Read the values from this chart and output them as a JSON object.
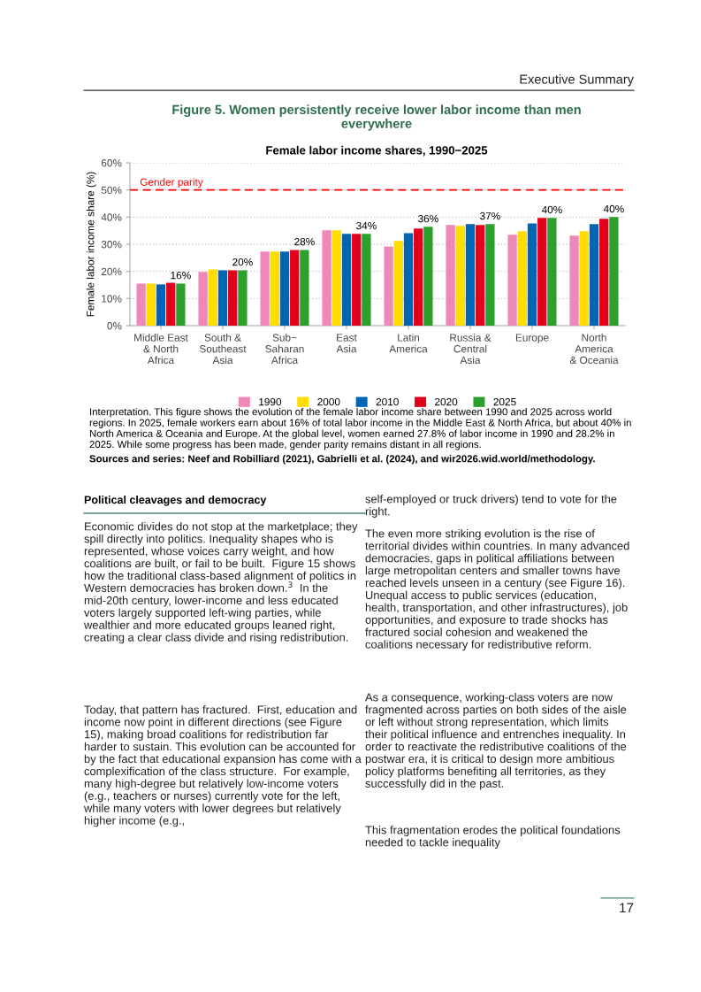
{
  "chart_data": {
    "type": "bar",
    "title": "Figure 5. Women persistently receive lower labor income than men everywhere",
    "subtitle": "Female labor income shares, 1990−2025",
    "ylabel": "Female labor income share (%)",
    "categories": [
      "Middle East\n& North\nAfrica",
      "South &\nSoutheast\nAsia",
      "Sub−\nSaharan\nAfrica",
      "East\nAsia",
      "Latin\nAmerica",
      "Russia &\nCentral\nAsia",
      "Europe",
      "North\nAmerica\n& Oceania"
    ],
    "series": [
      {
        "name": "1990",
        "color": "#ee88b8",
        "values": [
          15.5,
          19.8,
          27.3,
          35.1,
          29.2,
          37.1,
          33.5,
          33.2
        ]
      },
      {
        "name": "2000",
        "color": "#ffdd00",
        "values": [
          15.5,
          20.7,
          27.3,
          35.1,
          31.2,
          36.8,
          34.8,
          34.8
        ]
      },
      {
        "name": "2010",
        "color": "#0066b3",
        "values": [
          15.2,
          20.4,
          27.3,
          33.8,
          34.1,
          37.4,
          37.7,
          37.4
        ]
      },
      {
        "name": "2020",
        "color": "#e3001b",
        "values": [
          15.8,
          20.4,
          27.9,
          33.8,
          35.8,
          37.1,
          39.7,
          39.4
        ]
      },
      {
        "name": "2025",
        "color": "#2ca02c",
        "values": [
          15.5,
          20.4,
          27.9,
          33.8,
          36.4,
          37.4,
          39.7,
          40.0
        ],
        "value_labels": [
          "16%",
          "20%",
          "28%",
          "34%",
          "36%",
          "37%",
          "40%",
          "40%"
        ]
      }
    ],
    "ylim": [
      0,
      60
    ],
    "yticks": [
      {
        "value": 0,
        "label": "0%"
      },
      {
        "value": 10,
        "label": "10%"
      },
      {
        "value": 20,
        "label": "20%"
      },
      {
        "value": 30,
        "label": "30%"
      },
      {
        "value": 40,
        "label": "40%"
      },
      {
        "value": 50,
        "label": "50%"
      },
      {
        "value": 60,
        "label": "60%"
      }
    ],
    "grid": "y",
    "legend": "bottom",
    "ref_lines": [
      {
        "axis": "y",
        "value": 50,
        "label": "Gender parity",
        "color": "#ff0000",
        "line_style": "dashed"
      }
    ],
    "annotations": [
      "Executive Summary",
      "Interpretation. This figure shows the evolution of the female labor income share between 1990 and 2025 across world regions. In 2025, female workers earn about 16% of total labor income in the Middle East & North Africa, but about 40% in North America & Oceania and Europe. At the global level, women earned 27.8% of labor income in 1990 and 28.2% in 2025. While some progress has been made, gender parity remains distant in all regions.",
      "Sources and series: Neef and Robilliard (2021), Gabrielli et al. (2024), and wir2026.wid.world/methodology.",
      "Political cleavages and democracy",
      "Economic divides do not stop at the marketplace; they spill directly into politics. Inequality shapes who is represented, whose voices carry weight, and how coalitions are built, or fail to be built.  Figure 15 shows how the traditional class-based alignment of politics in Western democracies has broken down.$^{3}$  In the mid-20th century, lower-income and less educated voters largely supported left-wing parties, while wealthier and more educated groups leaned right, creating a clear class divide and rising redistribution.",
      "Today, that pattern has fractured.  First, education and income now point in different directions (see Figure 15), making broad coalitions for redistribution far harder to sustain. This evolution can be accounted for by the fact that educational expansion has come with a complexification of the class structure.  For example, many high-degree but relatively low-income voters (e.g., teachers or nurses) currently vote for the left, while many voters with lower degrees but relatively higher income (e.g.,",
      "self-employed or truck drivers) tend to vote for the right.",
      "The even more striking evolution is the rise of territorial divides within countries. In many advanced democracies, gaps in political affiliations between large metropolitan centers and smaller towns have reached levels unseen in a century (see Figure 16).  Unequal access to public services (education, health, transportation, and other infrastructures), job opportunities, and exposure to trade shocks has fractured social cohesion and weakened the coalitions necessary for redistributive reform.",
      "As a consequence, working-class voters are now fragmented across parties on both sides of the aisle or left without strong representation, which limits their political influence and entrenches inequality. In order to reactivate the redistributive coalitions of the postwar era, it is critical to design more ambitious policy platforms benefiting all territories, as they successfully did in the past.",
      "This fragmentation erodes the political foundations needed to tackle inequality",
      "17"
    ]
  }
}
